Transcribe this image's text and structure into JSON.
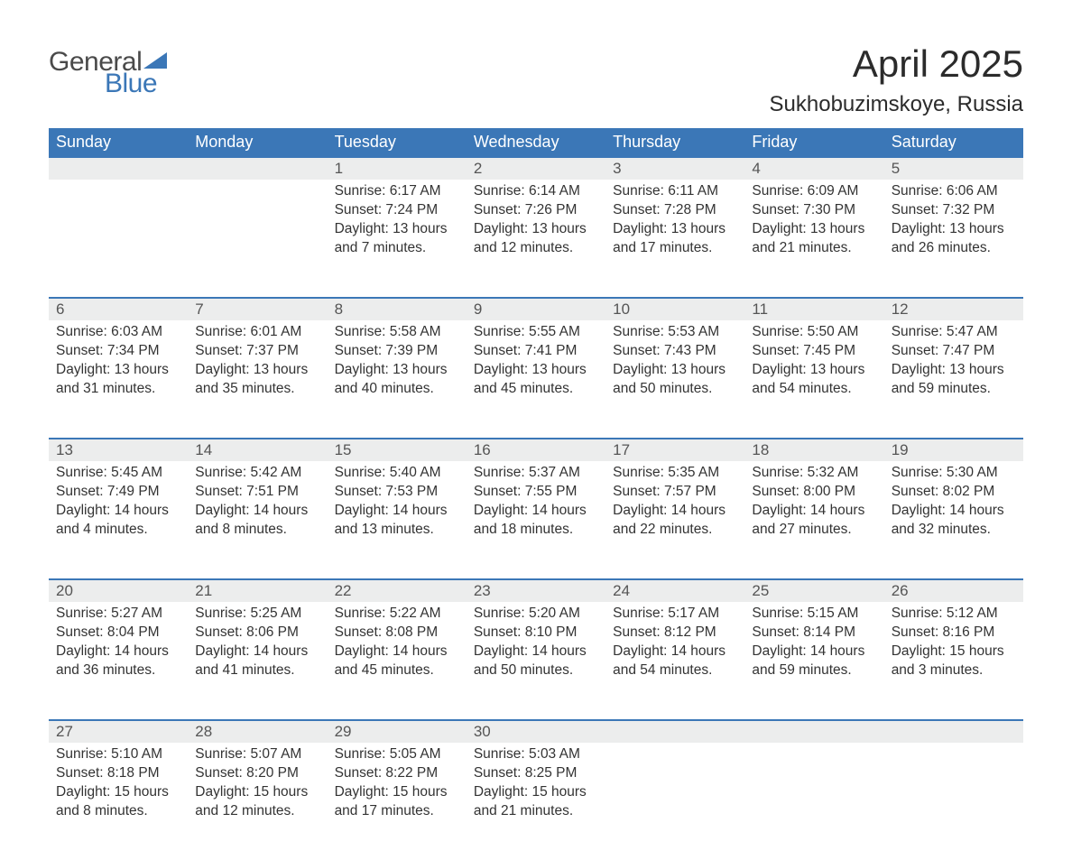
{
  "brand": {
    "name_part1": "General",
    "name_part2": "Blue",
    "color_text": "#4a4a4a",
    "color_accent": "#3b77b7"
  },
  "title": "April 2025",
  "location": "Sukhobuzimskoye, Russia",
  "colors": {
    "header_bg": "#3b77b7",
    "header_text": "#ffffff",
    "daynum_bg": "#eceded",
    "daynum_border": "#3b77b7",
    "body_text": "#333333",
    "page_bg": "#ffffff"
  },
  "fonts": {
    "title_size_pt": 32,
    "location_size_pt": 18,
    "header_size_pt": 14,
    "body_size_pt": 12
  },
  "weekdays": [
    "Sunday",
    "Monday",
    "Tuesday",
    "Wednesday",
    "Thursday",
    "Friday",
    "Saturday"
  ],
  "weeks": [
    [
      null,
      null,
      {
        "day": "1",
        "sunrise": "Sunrise: 6:17 AM",
        "sunset": "Sunset: 7:24 PM",
        "daylight1": "Daylight: 13 hours",
        "daylight2": "and 7 minutes."
      },
      {
        "day": "2",
        "sunrise": "Sunrise: 6:14 AM",
        "sunset": "Sunset: 7:26 PM",
        "daylight1": "Daylight: 13 hours",
        "daylight2": "and 12 minutes."
      },
      {
        "day": "3",
        "sunrise": "Sunrise: 6:11 AM",
        "sunset": "Sunset: 7:28 PM",
        "daylight1": "Daylight: 13 hours",
        "daylight2": "and 17 minutes."
      },
      {
        "day": "4",
        "sunrise": "Sunrise: 6:09 AM",
        "sunset": "Sunset: 7:30 PM",
        "daylight1": "Daylight: 13 hours",
        "daylight2": "and 21 minutes."
      },
      {
        "day": "5",
        "sunrise": "Sunrise: 6:06 AM",
        "sunset": "Sunset: 7:32 PM",
        "daylight1": "Daylight: 13 hours",
        "daylight2": "and 26 minutes."
      }
    ],
    [
      {
        "day": "6",
        "sunrise": "Sunrise: 6:03 AM",
        "sunset": "Sunset: 7:34 PM",
        "daylight1": "Daylight: 13 hours",
        "daylight2": "and 31 minutes."
      },
      {
        "day": "7",
        "sunrise": "Sunrise: 6:01 AM",
        "sunset": "Sunset: 7:37 PM",
        "daylight1": "Daylight: 13 hours",
        "daylight2": "and 35 minutes."
      },
      {
        "day": "8",
        "sunrise": "Sunrise: 5:58 AM",
        "sunset": "Sunset: 7:39 PM",
        "daylight1": "Daylight: 13 hours",
        "daylight2": "and 40 minutes."
      },
      {
        "day": "9",
        "sunrise": "Sunrise: 5:55 AM",
        "sunset": "Sunset: 7:41 PM",
        "daylight1": "Daylight: 13 hours",
        "daylight2": "and 45 minutes."
      },
      {
        "day": "10",
        "sunrise": "Sunrise: 5:53 AM",
        "sunset": "Sunset: 7:43 PM",
        "daylight1": "Daylight: 13 hours",
        "daylight2": "and 50 minutes."
      },
      {
        "day": "11",
        "sunrise": "Sunrise: 5:50 AM",
        "sunset": "Sunset: 7:45 PM",
        "daylight1": "Daylight: 13 hours",
        "daylight2": "and 54 minutes."
      },
      {
        "day": "12",
        "sunrise": "Sunrise: 5:47 AM",
        "sunset": "Sunset: 7:47 PM",
        "daylight1": "Daylight: 13 hours",
        "daylight2": "and 59 minutes."
      }
    ],
    [
      {
        "day": "13",
        "sunrise": "Sunrise: 5:45 AM",
        "sunset": "Sunset: 7:49 PM",
        "daylight1": "Daylight: 14 hours",
        "daylight2": "and 4 minutes."
      },
      {
        "day": "14",
        "sunrise": "Sunrise: 5:42 AM",
        "sunset": "Sunset: 7:51 PM",
        "daylight1": "Daylight: 14 hours",
        "daylight2": "and 8 minutes."
      },
      {
        "day": "15",
        "sunrise": "Sunrise: 5:40 AM",
        "sunset": "Sunset: 7:53 PM",
        "daylight1": "Daylight: 14 hours",
        "daylight2": "and 13 minutes."
      },
      {
        "day": "16",
        "sunrise": "Sunrise: 5:37 AM",
        "sunset": "Sunset: 7:55 PM",
        "daylight1": "Daylight: 14 hours",
        "daylight2": "and 18 minutes."
      },
      {
        "day": "17",
        "sunrise": "Sunrise: 5:35 AM",
        "sunset": "Sunset: 7:57 PM",
        "daylight1": "Daylight: 14 hours",
        "daylight2": "and 22 minutes."
      },
      {
        "day": "18",
        "sunrise": "Sunrise: 5:32 AM",
        "sunset": "Sunset: 8:00 PM",
        "daylight1": "Daylight: 14 hours",
        "daylight2": "and 27 minutes."
      },
      {
        "day": "19",
        "sunrise": "Sunrise: 5:30 AM",
        "sunset": "Sunset: 8:02 PM",
        "daylight1": "Daylight: 14 hours",
        "daylight2": "and 32 minutes."
      }
    ],
    [
      {
        "day": "20",
        "sunrise": "Sunrise: 5:27 AM",
        "sunset": "Sunset: 8:04 PM",
        "daylight1": "Daylight: 14 hours",
        "daylight2": "and 36 minutes."
      },
      {
        "day": "21",
        "sunrise": "Sunrise: 5:25 AM",
        "sunset": "Sunset: 8:06 PM",
        "daylight1": "Daylight: 14 hours",
        "daylight2": "and 41 minutes."
      },
      {
        "day": "22",
        "sunrise": "Sunrise: 5:22 AM",
        "sunset": "Sunset: 8:08 PM",
        "daylight1": "Daylight: 14 hours",
        "daylight2": "and 45 minutes."
      },
      {
        "day": "23",
        "sunrise": "Sunrise: 5:20 AM",
        "sunset": "Sunset: 8:10 PM",
        "daylight1": "Daylight: 14 hours",
        "daylight2": "and 50 minutes."
      },
      {
        "day": "24",
        "sunrise": "Sunrise: 5:17 AM",
        "sunset": "Sunset: 8:12 PM",
        "daylight1": "Daylight: 14 hours",
        "daylight2": "and 54 minutes."
      },
      {
        "day": "25",
        "sunrise": "Sunrise: 5:15 AM",
        "sunset": "Sunset: 8:14 PM",
        "daylight1": "Daylight: 14 hours",
        "daylight2": "and 59 minutes."
      },
      {
        "day": "26",
        "sunrise": "Sunrise: 5:12 AM",
        "sunset": "Sunset: 8:16 PM",
        "daylight1": "Daylight: 15 hours",
        "daylight2": "and 3 minutes."
      }
    ],
    [
      {
        "day": "27",
        "sunrise": "Sunrise: 5:10 AM",
        "sunset": "Sunset: 8:18 PM",
        "daylight1": "Daylight: 15 hours",
        "daylight2": "and 8 minutes."
      },
      {
        "day": "28",
        "sunrise": "Sunrise: 5:07 AM",
        "sunset": "Sunset: 8:20 PM",
        "daylight1": "Daylight: 15 hours",
        "daylight2": "and 12 minutes."
      },
      {
        "day": "29",
        "sunrise": "Sunrise: 5:05 AM",
        "sunset": "Sunset: 8:22 PM",
        "daylight1": "Daylight: 15 hours",
        "daylight2": "and 17 minutes."
      },
      {
        "day": "30",
        "sunrise": "Sunrise: 5:03 AM",
        "sunset": "Sunset: 8:25 PM",
        "daylight1": "Daylight: 15 hours",
        "daylight2": "and 21 minutes."
      },
      null,
      null,
      null
    ]
  ]
}
